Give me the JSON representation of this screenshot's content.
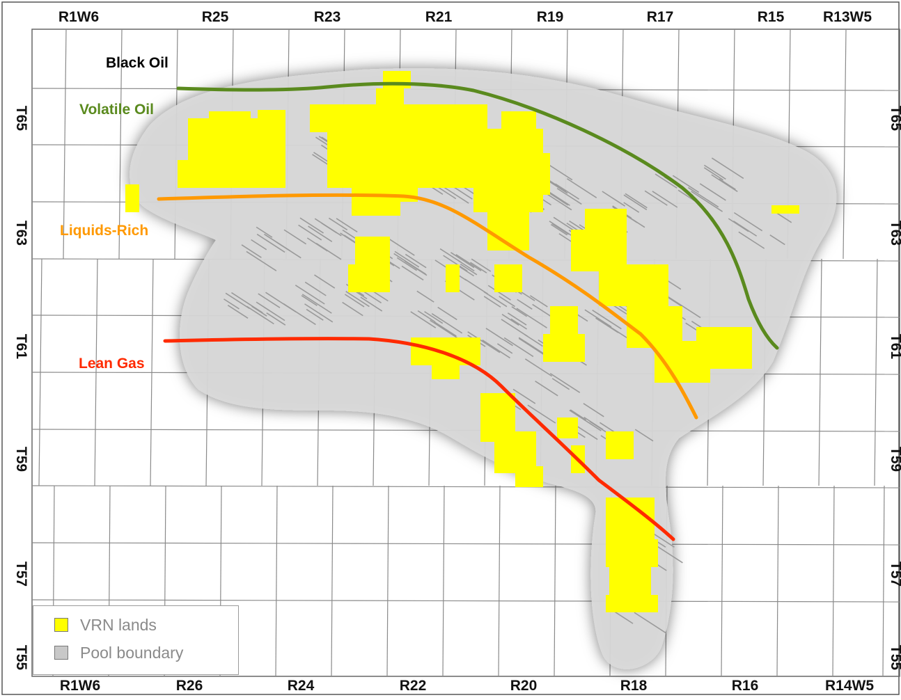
{
  "colors": {
    "vrn_lands": "#ffff00",
    "pool_boundary": "#d9d9d9",
    "black_oil": "#000000",
    "volatile_oil": "#5a8a1e",
    "liquids_rich": "#ff9900",
    "lean_gas": "#ff2a00",
    "grid_line": "#8a8a8a"
  },
  "ranges_top": [
    "R1W6",
    "R25",
    "R23",
    "R21",
    "R19",
    "R17",
    "R15",
    "R13W5"
  ],
  "ranges_bottom": [
    "R1W6",
    "R26",
    "R24",
    "R22",
    "R20",
    "R18",
    "R16",
    "R14W5"
  ],
  "townships_left": [
    "T65",
    "T63",
    "T61",
    "T59",
    "T57",
    "T55"
  ],
  "townships_right": [
    "T65",
    "T63",
    "T61",
    "T59",
    "T57",
    "T55"
  ],
  "fluid_zones": {
    "black_oil": "Black Oil",
    "volatile_oil": "Volatile Oil",
    "liquids_rich": "Liquids-Rich",
    "lean_gas": "Lean Gas"
  },
  "legend": {
    "vrn_lands": "VRN lands",
    "pool_boundary": "Pool boundary"
  }
}
